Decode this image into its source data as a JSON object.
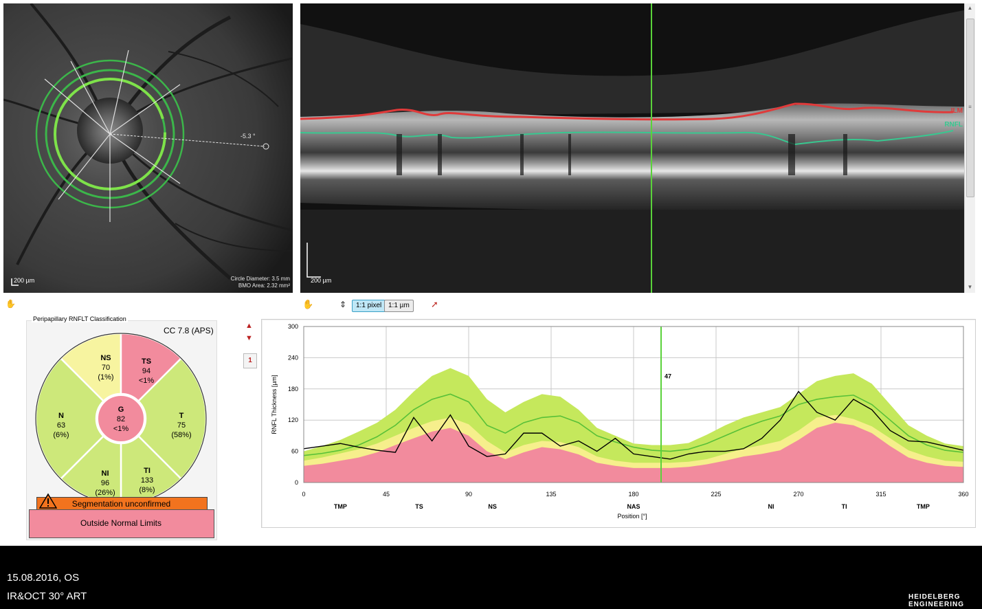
{
  "fundus": {
    "scale_label": "200 µm",
    "circle_diameter": "Circle Diameter: 3.5 mm",
    "bmo_area": "BMO Area: 2.32 mm²",
    "fovea_angle": "-5.3 °"
  },
  "bscan": {
    "scale_label": "200 µm",
    "ilm_label": "ILM",
    "rnfl_label": "RNFL"
  },
  "toolbar": {
    "pixel_label": "1:1 pixel",
    "um_label": "1:1 µm"
  },
  "classification": {
    "title": "Peripapillary RNFLT Classification",
    "cc": "CC 7.8 (APS)",
    "sectors": [
      {
        "key": "NS",
        "name": "NS",
        "value": "70",
        "pct": "(1%)",
        "color": "#f7f4a0"
      },
      {
        "key": "TS",
        "name": "TS",
        "value": "94",
        "pct": "<1%",
        "color": "#f28b9d"
      },
      {
        "key": "T",
        "name": "T",
        "value": "75",
        "pct": "(58%)",
        "color": "#cde87a"
      },
      {
        "key": "TI",
        "name": "TI",
        "value": "133",
        "pct": "(8%)",
        "color": "#cde87a"
      },
      {
        "key": "NI",
        "name": "NI",
        "value": "96",
        "pct": "(26%)",
        "color": "#cde87a"
      },
      {
        "key": "N",
        "name": "N",
        "value": "63",
        "pct": "(6%)",
        "color": "#cde87a"
      },
      {
        "key": "G",
        "name": "G",
        "value": "82",
        "pct": "<1%",
        "color": "#f28b9d"
      }
    ],
    "segmentation_text": "Segmentation unconfirmed",
    "result_text": "Outside Normal Limits"
  },
  "scan_index": "1",
  "chart_data": {
    "type": "line",
    "ylabel": "RNFL Thickness [µm]",
    "xlabel": "Position [°]",
    "ylim": [
      0,
      300
    ],
    "xlim": [
      0,
      360
    ],
    "yticks": [
      0,
      60,
      120,
      180,
      240,
      300
    ],
    "xticks": [
      0,
      45,
      90,
      135,
      180,
      225,
      270,
      315,
      360
    ],
    "sector_labels": [
      {
        "label": "TMP",
        "x": 20
      },
      {
        "label": "TS",
        "x": 63
      },
      {
        "label": "NS",
        "x": 103
      },
      {
        "label": "NAS",
        "x": 180
      },
      {
        "label": "NI",
        "x": 255
      },
      {
        "label": "TI",
        "x": 295
      },
      {
        "label": "TMP",
        "x": 338
      }
    ],
    "cursor_x": 195,
    "cursor_value": "47",
    "x": [
      0,
      10,
      20,
      30,
      40,
      50,
      60,
      70,
      80,
      90,
      100,
      110,
      120,
      130,
      140,
      150,
      160,
      170,
      180,
      190,
      200,
      210,
      220,
      230,
      240,
      250,
      260,
      270,
      280,
      290,
      300,
      310,
      320,
      330,
      340,
      350,
      360
    ],
    "band_upper": [
      60,
      70,
      82,
      98,
      115,
      140,
      175,
      205,
      220,
      205,
      160,
      135,
      155,
      170,
      165,
      140,
      105,
      90,
      75,
      72,
      72,
      76,
      92,
      110,
      125,
      135,
      145,
      170,
      195,
      205,
      210,
      190,
      150,
      110,
      90,
      75,
      70
    ],
    "band_lower_yellow": [
      42,
      48,
      56,
      64,
      75,
      90,
      105,
      118,
      125,
      112,
      80,
      58,
      72,
      80,
      78,
      68,
      50,
      42,
      38,
      38,
      38,
      40,
      45,
      55,
      65,
      72,
      80,
      100,
      125,
      130,
      122,
      108,
      85,
      62,
      50,
      42,
      40
    ],
    "band_lower_red": [
      32,
      36,
      42,
      48,
      58,
      72,
      85,
      98,
      105,
      90,
      60,
      45,
      58,
      68,
      64,
      54,
      38,
      32,
      28,
      28,
      28,
      30,
      35,
      42,
      50,
      55,
      62,
      82,
      105,
      115,
      110,
      95,
      70,
      48,
      38,
      32,
      30
    ],
    "series": [
      {
        "name": "mean",
        "color": "#58c038",
        "values": [
          52,
          56,
          62,
          72,
          88,
          110,
          140,
          160,
          170,
          155,
          110,
          95,
          115,
          125,
          128,
          115,
          90,
          78,
          68,
          62,
          60,
          64,
          75,
          90,
          105,
          118,
          128,
          150,
          160,
          165,
          168,
          150,
          120,
          90,
          72,
          62,
          58
        ]
      },
      {
        "name": "patient",
        "color": "#000000",
        "values": [
          65,
          70,
          75,
          68,
          62,
          58,
          125,
          80,
          130,
          70,
          50,
          55,
          95,
          95,
          70,
          80,
          60,
          85,
          55,
          50,
          45,
          55,
          60,
          60,
          65,
          85,
          120,
          175,
          135,
          120,
          160,
          140,
          100,
          80,
          78,
          70,
          62
        ]
      }
    ]
  },
  "footer": {
    "date_eye": "15.08.2016, OS",
    "mode": "IR&OCT 30° ART",
    "brand_line1": "HEIDELBERG",
    "brand_line2": "ENGINEERING"
  }
}
